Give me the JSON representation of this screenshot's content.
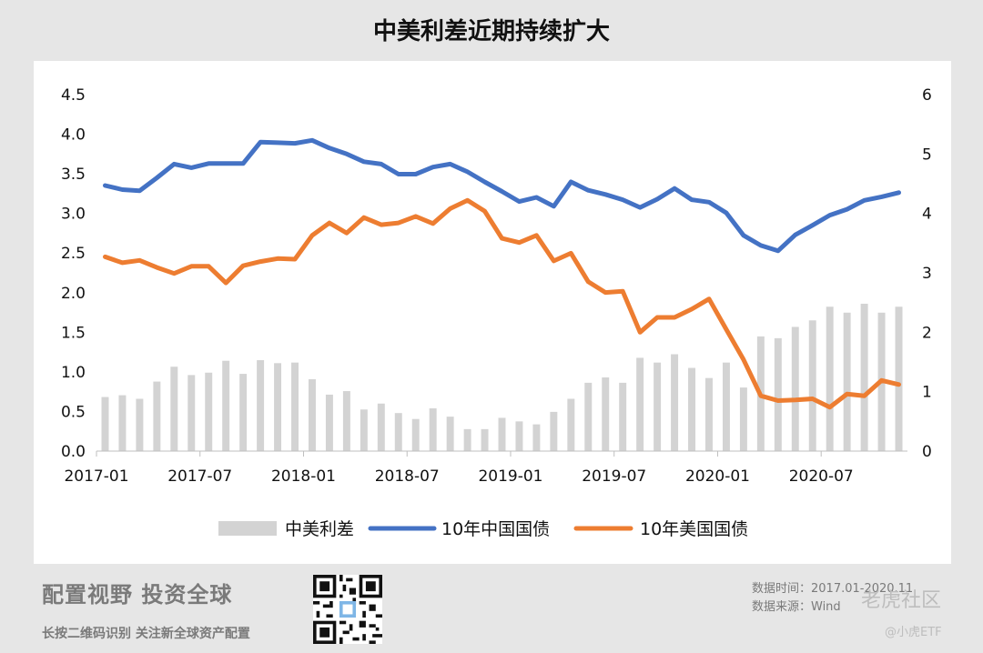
{
  "title": "中美利差近期持续扩大",
  "footer": {
    "slogan": "配置视野  投资全球",
    "sub": "长按二维码识别  关注新全球资产配置",
    "source_time": "数据时间：2017.01-2020.11",
    "source": "数据来源：Wind",
    "watermark_main": "老虎社区",
    "watermark_sub": "@小虎ETF"
  },
  "colors": {
    "spread": "#d3d3d3",
    "china": "#4472c4",
    "us": "#ed7d31",
    "axis": "#bfbfbf",
    "text": "#111111"
  },
  "chart_data": {
    "type": "bar+line",
    "title": "中美利差近期持续扩大",
    "x": [
      "2017-01",
      "2017-02",
      "2017-03",
      "2017-04",
      "2017-05",
      "2017-06",
      "2017-07",
      "2017-08",
      "2017-09",
      "2017-10",
      "2017-11",
      "2017-12",
      "2018-01",
      "2018-02",
      "2018-03",
      "2018-04",
      "2018-05",
      "2018-06",
      "2018-07",
      "2018-08",
      "2018-09",
      "2018-10",
      "2018-11",
      "2018-12",
      "2019-01",
      "2019-02",
      "2019-03",
      "2019-04",
      "2019-05",
      "2019-06",
      "2019-07",
      "2019-08",
      "2019-09",
      "2019-10",
      "2019-11",
      "2019-12",
      "2020-01",
      "2020-02",
      "2020-03",
      "2020-04",
      "2020-05",
      "2020-06",
      "2020-07",
      "2020-08",
      "2020-09",
      "2020-10",
      "2020-11"
    ],
    "x_tick_labels": [
      "2017-01",
      "2017-07",
      "2018-01",
      "2018-07",
      "2019-01",
      "2019-07",
      "2020-01",
      "2020-07"
    ],
    "y_left": {
      "ticks": [
        "0.0",
        "0.5",
        "1.0",
        "1.5",
        "2.0",
        "2.5",
        "3.0",
        "3.5",
        "4.0",
        "4.5"
      ],
      "ylim": [
        0,
        4.5
      ]
    },
    "y_right": {
      "ticks": [
        "0",
        "1",
        "2",
        "3",
        "4",
        "5",
        "6"
      ],
      "ylim": [
        0,
        6
      ]
    },
    "legend": [
      "中美利差",
      "10年中国国债",
      "10年美国国债"
    ],
    "legend_position": "bottom",
    "series": [
      {
        "name": "中美利差",
        "type": "bar",
        "axis": "right",
        "values": [
          0.91,
          0.94,
          0.88,
          1.17,
          1.42,
          1.28,
          1.32,
          1.52,
          1.3,
          1.53,
          1.48,
          1.49,
          1.21,
          0.95,
          1.01,
          0.7,
          0.8,
          0.64,
          0.54,
          0.72,
          0.58,
          0.37,
          0.37,
          0.56,
          0.5,
          0.45,
          0.66,
          0.88,
          1.15,
          1.24,
          1.15,
          1.57,
          1.49,
          1.63,
          1.4,
          1.23,
          1.49,
          1.07,
          1.93,
          1.9,
          2.09,
          2.2,
          2.43,
          2.33,
          2.48,
          2.33,
          2.43
        ]
      },
      {
        "name": "10年中国国债",
        "type": "line",
        "axis": "right",
        "values": [
          4.47,
          4.4,
          4.38,
          4.6,
          4.83,
          4.77,
          4.84,
          4.84,
          4.84,
          5.2,
          5.19,
          5.18,
          5.23,
          5.1,
          5.0,
          4.87,
          4.83,
          4.66,
          4.66,
          4.78,
          4.83,
          4.7,
          4.53,
          4.37,
          4.2,
          4.27,
          4.12,
          4.53,
          4.39,
          4.32,
          4.23,
          4.1,
          4.24,
          4.42,
          4.23,
          4.19,
          4.01,
          3.63,
          3.46,
          3.37,
          3.64,
          3.8,
          3.97,
          4.07,
          4.22,
          4.28,
          4.35
        ]
      },
      {
        "name": "10年美国国债",
        "type": "line",
        "axis": "right",
        "values": [
          3.27,
          3.17,
          3.21,
          3.09,
          2.99,
          3.11,
          3.11,
          2.83,
          3.12,
          3.19,
          3.24,
          3.23,
          3.63,
          3.84,
          3.67,
          3.93,
          3.81,
          3.84,
          3.95,
          3.83,
          4.08,
          4.22,
          4.04,
          3.58,
          3.51,
          3.63,
          3.2,
          3.33,
          2.85,
          2.67,
          2.69,
          2.0,
          2.25,
          2.25,
          2.39,
          2.56,
          2.05,
          1.54,
          0.93,
          0.85,
          0.86,
          0.88,
          0.74,
          0.96,
          0.93,
          1.19,
          1.12
        ]
      }
    ]
  }
}
